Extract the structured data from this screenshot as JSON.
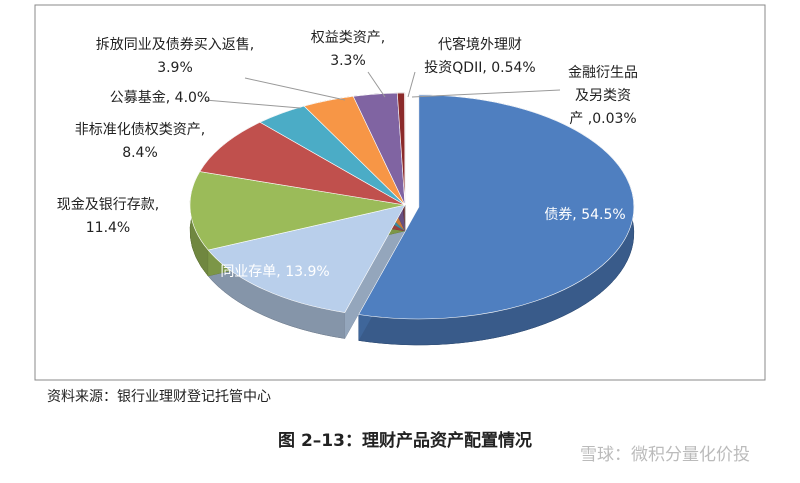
{
  "chart_data": {
    "type": "pie",
    "categories": [
      "债券",
      "同业存单",
      "现金及银行存款",
      "非标准化债权类资产",
      "公募基金",
      "拆放同业及债券买入返售",
      "权益类资产",
      "代客境外理财投资QDII",
      "金融衍生品及另类资产"
    ],
    "values": [
      54.5,
      13.9,
      11.4,
      8.4,
      4.0,
      3.9,
      3.3,
      0.54,
      0.03
    ],
    "labels": [
      [
        "债券, 54.5%"
      ],
      [
        "同业存单, 13.9%"
      ],
      [
        "现金及银行存款,",
        "11.4%"
      ],
      [
        "非标准化债权类资产,",
        "8.4%"
      ],
      [
        "公募基金, 4.0%"
      ],
      [
        "拆放同业及债券买入返售,",
        "3.9%"
      ],
      [
        "权益类资产,",
        "3.3%"
      ],
      [
        "代客境外理财",
        "投资QDII, 0.54%"
      ],
      [
        "金融衍生品",
        "及另类资",
        "产 ,0.03%"
      ]
    ],
    "colors": [
      "#4f7fc0",
      "#b9cfeb",
      "#9bbb59",
      "#c0504d",
      "#4bacc6",
      "#f79646",
      "#8064a2",
      "#8b2a2a",
      "#d8d8d8"
    ],
    "source": "资料来源：银行业理财登记托管中心",
    "caption": "图 2–13：理财产品资产配置情况",
    "watermark": "雪球：微积分量化价投"
  }
}
